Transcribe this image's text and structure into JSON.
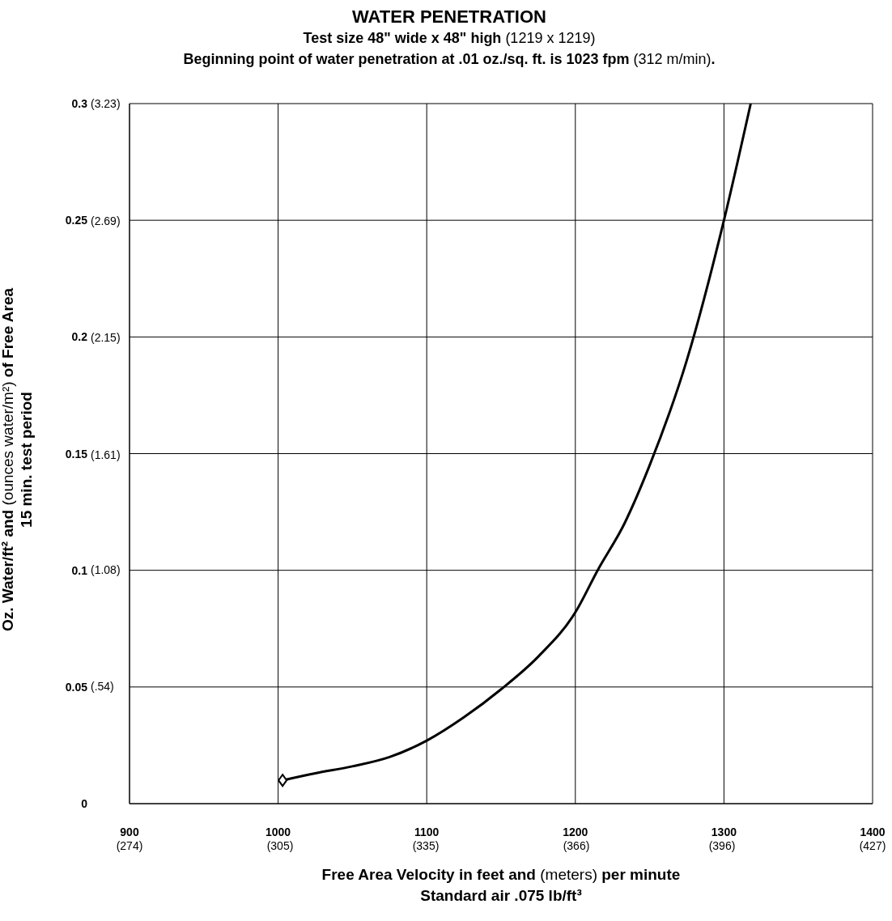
{
  "chart_data": {
    "type": "line",
    "title": "WATER PENETRATION",
    "subtitle": "Test size 48\" wide x 48\" high (1219 x 1219)\nBeginning point of water penetration at .01 oz./sq. ft. is 1023 fpm (312 m/min).",
    "xlabel": "Free Area Velocity in feet and (meters) per minute\nStandard air .075 lb/ft³",
    "ylabel": "Oz. Water/ft² and (ounces water/m²) of Free Area\n15 min. test period",
    "series": [
      {
        "color": "#000000",
        "marker": "none",
        "x": [
          1003,
          1025,
          1050,
          1075,
          1100,
          1125,
          1150,
          1175,
          1200,
          1215,
          1233,
          1250,
          1275,
          1300,
          1318
        ],
        "values": [
          0.01,
          0.013,
          0.016,
          0.02,
          0.027,
          0.037,
          0.049,
          0.063,
          0.082,
          0.1,
          0.12,
          0.145,
          0.19,
          0.25,
          0.3
        ]
      }
    ],
    "xlim": [
      900,
      1400
    ],
    "xticks": [
      900,
      1000,
      1100,
      1200,
      1300,
      1400
    ],
    "x2lim": [
      274,
      427
    ],
    "x2ticks": [
      {
        "value": 274,
        "label": "(274)"
      },
      {
        "value": 305,
        "label": "(305)"
      },
      {
        "value": 335,
        "label": "(335)"
      },
      {
        "value": 366,
        "label": "(366)"
      },
      {
        "value": 396,
        "label": "(396)"
      },
      {
        "value": 427,
        "label": "(427)"
      }
    ],
    "ylim": [
      0,
      0.3
    ],
    "yticks": [
      0,
      0.05,
      0.1,
      0.15,
      0.2,
      0.25,
      0.3
    ],
    "y2lim": [
      0,
      3.23
    ],
    "y2ticks": [
      {
        "value": 0.54,
        "label": "(.54)"
      },
      {
        "value": 1.08,
        "label": "(1.08)"
      },
      {
        "value": 1.61,
        "label": "(1.61)"
      },
      {
        "value": 2.15,
        "label": "(2.15)"
      },
      {
        "value": 2.69,
        "label": "(2.69)"
      },
      {
        "value": 3.23,
        "label": "(3.23)"
      }
    ],
    "grid": true
  }
}
